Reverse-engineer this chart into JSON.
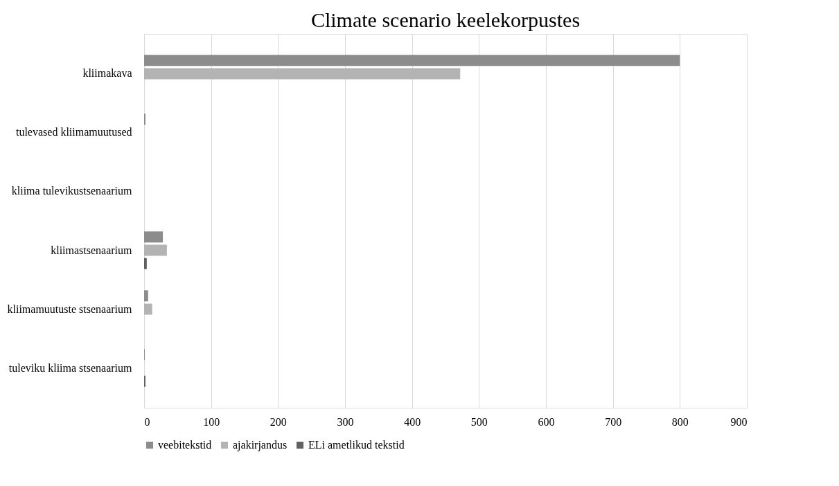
{
  "chart_data": {
    "type": "bar",
    "orientation": "horizontal",
    "title": "Climate scenario keelekorpustes",
    "categories": [
      "kliimakava",
      "tulevased kliimamuutused",
      "kliima tulevikustsenaarium",
      "kliimastsenaarium",
      "kliimamuutuste stsenaarium",
      "tuleviku kliima stsenaarium"
    ],
    "series": [
      {
        "name": "veebitekstid",
        "color": "#8c8c8c",
        "values": [
          800,
          2,
          0,
          28,
          6,
          1
        ]
      },
      {
        "name": "ajakirjandus",
        "color": "#b3b3b3",
        "values": [
          472,
          null,
          null,
          34,
          12,
          0
        ]
      },
      {
        "name": "ELi ametlikud tekstid",
        "color": "#616161",
        "values": [
          0,
          0,
          0,
          4,
          0,
          2
        ]
      }
    ],
    "xlim": [
      0,
      900
    ],
    "xticks": [
      0,
      100,
      200,
      300,
      400,
      500,
      600,
      700,
      800,
      900
    ],
    "grid": "x",
    "legend": "bottom"
  }
}
